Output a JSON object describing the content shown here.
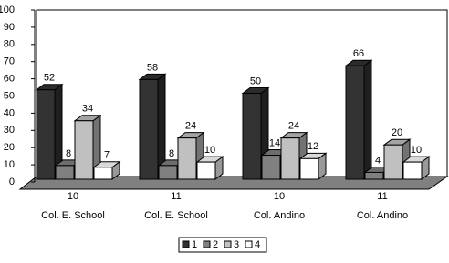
{
  "chart_data": {
    "type": "bar3d",
    "categories": [
      [
        "10",
        "Col. E. School"
      ],
      [
        "11",
        "Col. E. School"
      ],
      [
        "10",
        "Col. Andino"
      ],
      [
        "11",
        "Col. Andino"
      ]
    ],
    "series": [
      {
        "name": "1",
        "color": "#333333",
        "values": [
          52,
          58,
          50,
          66
        ]
      },
      {
        "name": "2",
        "color": "#808080",
        "values": [
          8,
          8,
          14,
          4
        ]
      },
      {
        "name": "3",
        "color": "#c0c0c0",
        "values": [
          34,
          24,
          24,
          20
        ]
      },
      {
        "name": "4",
        "color": "#ffffff",
        "values": [
          7,
          10,
          12,
          10
        ]
      }
    ],
    "ylim": [
      0,
      100
    ],
    "yticks": [
      0,
      10,
      20,
      30,
      40,
      50,
      60,
      70,
      80,
      90,
      100
    ],
    "legend": "bottom"
  }
}
